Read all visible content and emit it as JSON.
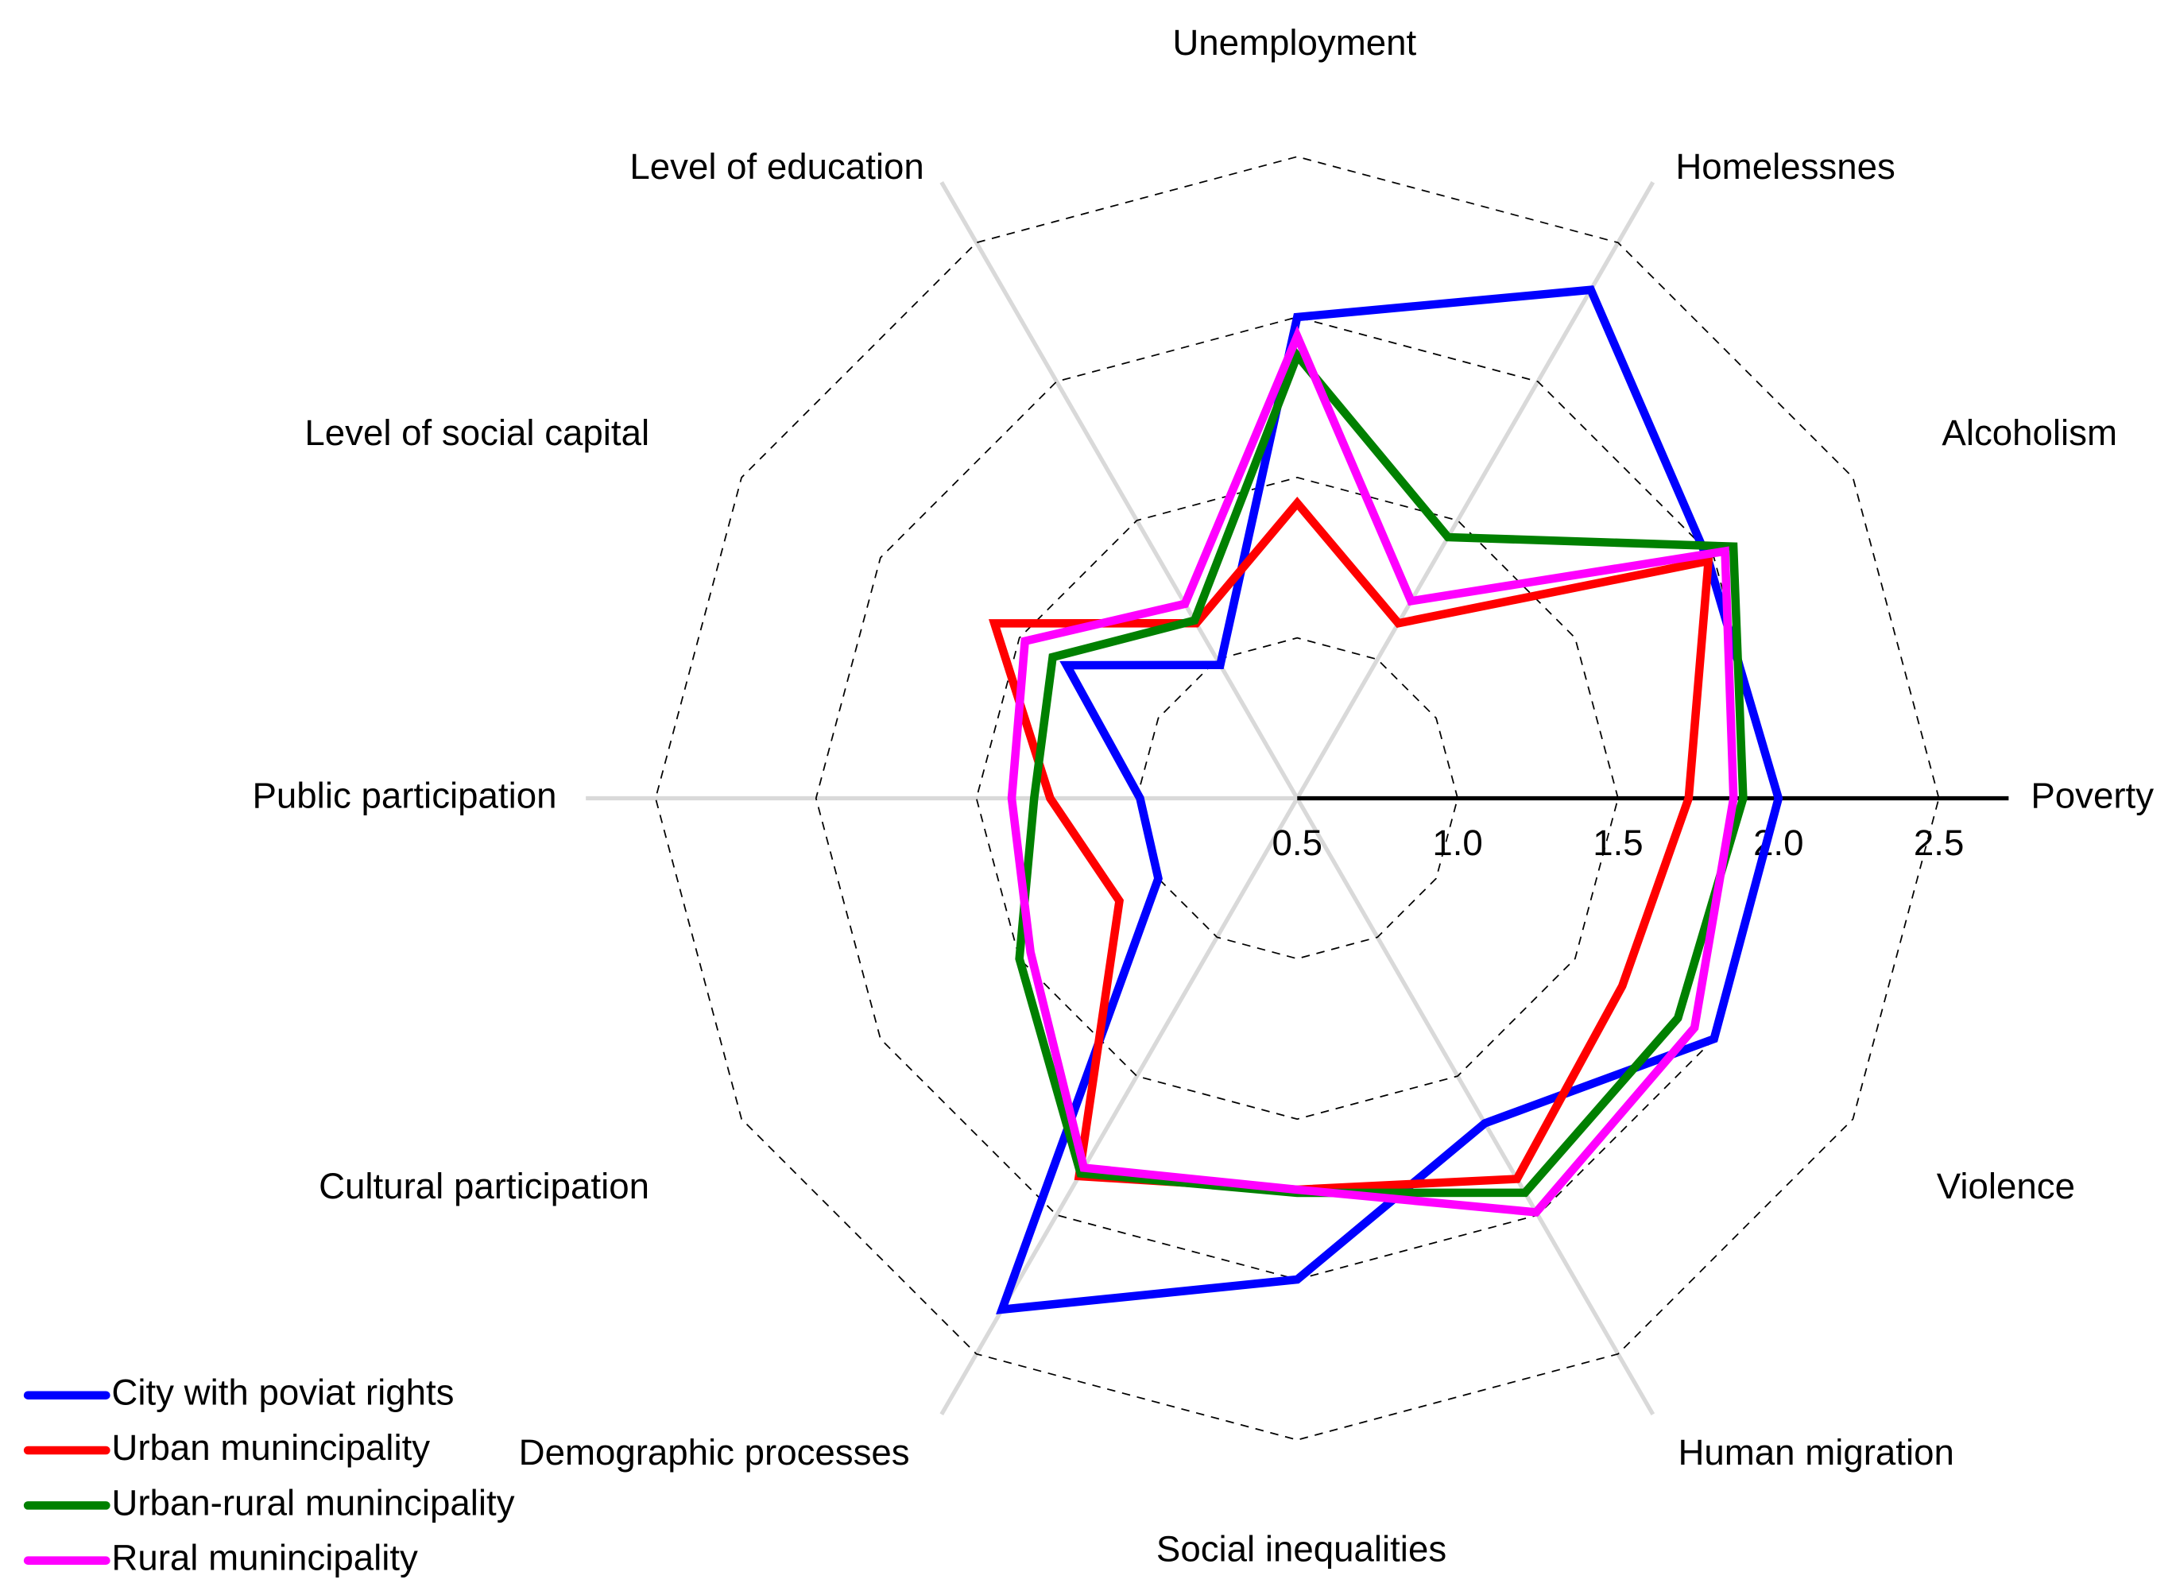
{
  "chart_data": {
    "type": "radar",
    "categories": [
      "Poverty",
      "Alcoholism",
      "Homelessnes",
      "Unemployment",
      "Level of education",
      "Level of social capital",
      "Public participation",
      "Cultural participation",
      "Demographic processes",
      "Social inequalities",
      "Human migration",
      "Violence"
    ],
    "series": [
      {
        "name": "City with poviat rights",
        "color": "#0000ff",
        "values": [
          2.0,
          1.98,
          2.33,
          2.0,
          0.98,
          1.33,
          0.99,
          1.0,
          2.34,
          2.0,
          1.67,
          2.0
        ]
      },
      {
        "name": "Urban munincipality",
        "color": "#ff0000",
        "values": [
          1.72,
          1.98,
          1.13,
          1.42,
          1.13,
          1.59,
          1.27,
          1.14,
          1.86,
          1.72,
          1.87,
          1.67
        ]
      },
      {
        "name": "Urban-rural munincipality",
        "color": "#008000",
        "values": [
          1.89,
          2.07,
          1.44,
          1.88,
          1.14,
          1.38,
          1.32,
          1.5,
          1.85,
          1.73,
          1.92,
          1.87
        ]
      },
      {
        "name": "Rural munincipality",
        "color": "#ff00ff",
        "values": [
          1.86,
          2.04,
          1.21,
          1.94,
          1.2,
          1.48,
          1.39,
          1.46,
          1.83,
          1.72,
          1.99,
          1.93
        ]
      }
    ],
    "rlim": [
      0.5,
      2.5
    ],
    "rticks": [
      0.5,
      {
        "value": 1,
        "label": "1.0"
      },
      1.5,
      {
        "value": 2,
        "label": "2.0"
      },
      2.5
    ],
    "grid": true,
    "legend": "lower-left"
  }
}
